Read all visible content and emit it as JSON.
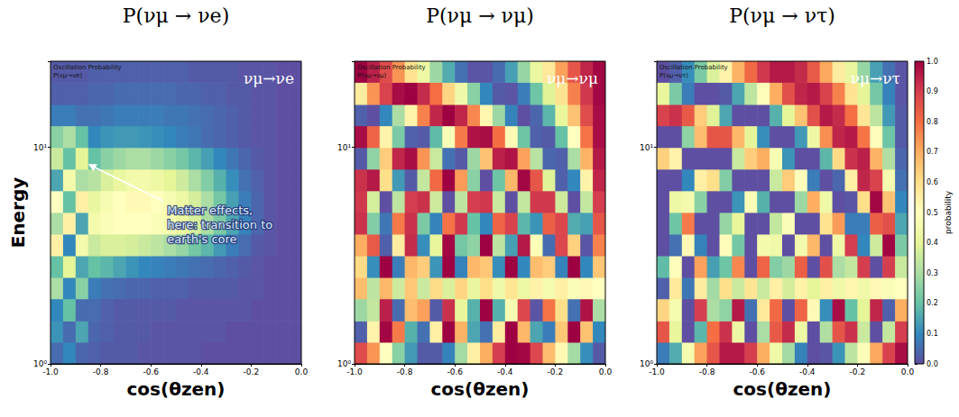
{
  "chart_data": [
    {
      "type": "heatmap",
      "title": "P(νμ → νe)",
      "xlabel": "cos(θzen)",
      "ylabel": "Energy",
      "annotations": [
        "Oscillation Probability",
        "P(νμ→νe)",
        "νμ→νe"
      ],
      "note": "Matter effects, here: transition to earth's core",
      "log": "y",
      "grid": false,
      "xlim": [
        -1,
        0
      ],
      "xticks": [
        {
          "value": -1,
          "label": "-1.0"
        },
        {
          "value": -0.8,
          "label": "-0.8"
        },
        {
          "value": -0.6,
          "label": "-0.6"
        },
        {
          "value": -0.4,
          "label": "-0.4"
        },
        {
          "value": -0.2,
          "label": "-0.2"
        },
        {
          "value": 0,
          "label": "0.0"
        }
      ],
      "ylim": [
        1,
        25
      ],
      "yticks": [
        {
          "value": 1,
          "label": "10⁰"
        },
        {
          "value": 10,
          "label": "10¹"
        }
      ],
      "x_edges": [
        -1,
        -0.95,
        -0.9,
        -0.85,
        -0.8,
        -0.75,
        -0.7,
        -0.65,
        -0.6,
        -0.55,
        -0.5,
        -0.45,
        -0.4,
        -0.35,
        -0.3,
        -0.25,
        -0.2,
        -0.15,
        -0.1,
        -0.05,
        0
      ],
      "y_edges": [
        1,
        1.26,
        1.58,
        2,
        2.51,
        3.16,
        3.98,
        5.01,
        6.31,
        7.94,
        10,
        12.6,
        15.8,
        20,
        25
      ],
      "cells": [
        [
          0.05,
          0.1,
          0.04,
          0.03,
          0.02,
          0.02,
          0.02,
          0.01,
          0.01,
          0.01,
          0.01,
          0.01,
          0,
          0,
          0,
          0,
          0,
          0,
          0,
          0
        ],
        [
          0.12,
          0.05,
          0.15,
          0.04,
          0.03,
          0.02,
          0.02,
          0.02,
          0.01,
          0.01,
          0.01,
          0.01,
          0.01,
          0.01,
          0,
          0,
          0,
          0,
          0,
          0
        ],
        [
          0.1,
          0.2,
          0.05,
          0.05,
          0.03,
          0.02,
          0.02,
          0.02,
          0.02,
          0.02,
          0.01,
          0.01,
          0.01,
          0.01,
          0.01,
          0.01,
          0,
          0,
          0,
          0
        ],
        [
          0.3,
          0.1,
          0.25,
          0.08,
          0.06,
          0.05,
          0.04,
          0.04,
          0.03,
          0.03,
          0.03,
          0.02,
          0.02,
          0.02,
          0.02,
          0.01,
          0.01,
          0,
          0,
          0
        ],
        [
          0.2,
          0.4,
          0.15,
          0.2,
          0.18,
          0.15,
          0.12,
          0.1,
          0.09,
          0.08,
          0.07,
          0.06,
          0.05,
          0.04,
          0.03,
          0.02,
          0.01,
          0,
          0,
          0
        ],
        [
          0.55,
          0.1,
          0.45,
          0.35,
          0.38,
          0.38,
          0.37,
          0.35,
          0.33,
          0.3,
          0.27,
          0.22,
          0.18,
          0.13,
          0.08,
          0.05,
          0.02,
          0.01,
          0,
          0
        ],
        [
          0.3,
          0.55,
          0.15,
          0.45,
          0.48,
          0.5,
          0.5,
          0.5,
          0.48,
          0.46,
          0.42,
          0.37,
          0.3,
          0.23,
          0.15,
          0.09,
          0.04,
          0.01,
          0,
          0
        ],
        [
          0.5,
          0.2,
          0.55,
          0.42,
          0.47,
          0.5,
          0.52,
          0.52,
          0.5,
          0.47,
          0.43,
          0.37,
          0.3,
          0.22,
          0.14,
          0.08,
          0.04,
          0.01,
          0,
          0
        ],
        [
          0.15,
          0.45,
          0.3,
          0.32,
          0.38,
          0.42,
          0.45,
          0.45,
          0.43,
          0.4,
          0.36,
          0.3,
          0.24,
          0.17,
          0.11,
          0.06,
          0.03,
          0.01,
          0,
          0
        ],
        [
          0.35,
          0.2,
          0.4,
          0.2,
          0.25,
          0.28,
          0.3,
          0.3,
          0.28,
          0.25,
          0.22,
          0.18,
          0.14,
          0.1,
          0.07,
          0.04,
          0.02,
          0.01,
          0,
          0
        ],
        [
          0.25,
          0.3,
          0.2,
          0.1,
          0.12,
          0.13,
          0.13,
          0.12,
          0.11,
          0.1,
          0.08,
          0.07,
          0.05,
          0.04,
          0.03,
          0.02,
          0.01,
          0.01,
          0,
          0
        ],
        [
          0.08,
          0.08,
          0.06,
          0.06,
          0.07,
          0.08,
          0.08,
          0.08,
          0.08,
          0.07,
          0.07,
          0.06,
          0.05,
          0.04,
          0.03,
          0.02,
          0.01,
          0.01,
          0,
          0
        ],
        [
          0.03,
          0.03,
          0.03,
          0.04,
          0.04,
          0.05,
          0.05,
          0.05,
          0.05,
          0.05,
          0.04,
          0.04,
          0.03,
          0.03,
          0.02,
          0.02,
          0.01,
          0.01,
          0,
          0
        ],
        [
          0.02,
          0.02,
          0.02,
          0.03,
          0.03,
          0.03,
          0.03,
          0.03,
          0.03,
          0.03,
          0.03,
          0.02,
          0.02,
          0.02,
          0.02,
          0.01,
          0.01,
          0.01,
          0,
          0
        ]
      ]
    },
    {
      "type": "heatmap",
      "title": "P(νμ → νμ)",
      "xlabel": "cos(θzen)",
      "annotations": [
        "Oscillation Probability",
        "P(νμ→νμ)",
        "νμ→νμ"
      ],
      "log": "y",
      "grid": false,
      "xlim": [
        -1,
        0
      ],
      "xticks": [
        {
          "value": -1,
          "label": "-1.0"
        },
        {
          "value": -0.8,
          "label": "-0.8"
        },
        {
          "value": -0.6,
          "label": "-0.6"
        },
        {
          "value": -0.4,
          "label": "-0.4"
        },
        {
          "value": -0.2,
          "label": "-0.2"
        },
        {
          "value": 0,
          "label": "0.0"
        }
      ],
      "ylim": [
        1,
        25
      ],
      "yticks": [
        {
          "value": 1,
          "label": "10⁰"
        },
        {
          "value": 10,
          "label": "10¹"
        }
      ],
      "x_edges": [
        -1,
        -0.95,
        -0.9,
        -0.85,
        -0.8,
        -0.75,
        -0.7,
        -0.65,
        -0.6,
        -0.55,
        -0.5,
        -0.45,
        -0.4,
        -0.35,
        -0.3,
        -0.25,
        -0.2,
        -0.15,
        -0.1,
        -0.05,
        0
      ],
      "y_edges": [
        1,
        1.26,
        1.58,
        2,
        2.51,
        3.16,
        3.98,
        5.01,
        6.31,
        7.94,
        10,
        12.6,
        15.8,
        20,
        25
      ],
      "cells": [
        [
          0.87,
          0.74,
          0.5,
          0.25,
          0.13,
          0.02,
          0.02,
          0.09,
          0.29,
          0.55,
          0.7,
          0.9,
          1,
          0.99,
          0.88,
          0.67,
          0.52,
          0.29,
          0.11,
          0.02
        ],
        [
          0.03,
          0.54,
          0.99,
          0.78,
          0.17,
          0.06,
          0.55,
          1,
          0.69,
          0.15,
          0.06,
          0.56,
          1,
          0.68,
          0.15,
          0.08,
          0.65,
          1,
          0.66,
          0.1
        ],
        [
          0.28,
          0.34,
          0.95,
          0.05,
          0.67,
          0.72,
          0.02,
          0.92,
          0.41,
          0.17,
          1,
          0.17,
          0.47,
          0.88,
          0.01,
          0.79,
          0.6,
          0.06,
          0.97,
          0.3
        ],
        [
          0.67,
          0.33,
          0.68,
          0.36,
          0.65,
          0.35,
          0.61,
          0.38,
          0.62,
          0.42,
          0.6,
          0.44,
          0.58,
          0.43,
          0.54,
          0.46,
          0.55,
          0.48,
          0.52,
          0.5
        ],
        [
          0.61,
          0.11,
          1,
          0.08,
          0.68,
          0.64,
          0.12,
          1,
          0.09,
          0.68,
          0.65,
          0.11,
          1,
          0.1,
          0.67,
          0.64,
          0.09,
          1,
          0.1,
          0.65
        ],
        [
          0.7,
          0.84,
          0.03,
          0.56,
          0.93,
          0.11,
          0.41,
          0.99,
          0.22,
          0.26,
          1,
          0.33,
          0.14,
          0.96,
          0.48,
          0.05,
          0.88,
          0.63,
          0.01,
          0.77
        ],
        [
          0.92,
          0.24,
          0.07,
          0.78,
          0.92,
          0.23,
          0.09,
          0.79,
          0.91,
          0.2,
          0.1,
          0.82,
          0.89,
          0.18,
          0.12,
          0.83,
          0.88,
          0.16,
          0.14,
          0.85
        ],
        [
          0.91,
          0.37,
          0,
          0.33,
          0.9,
          0.92,
          0.36,
          0,
          0.33,
          0.9,
          0.91,
          0.35,
          0,
          0.34,
          0.91,
          0.91,
          0.36,
          0,
          0.34,
          0.9
        ],
        [
          0.92,
          0.96,
          0.6,
          0.13,
          0.02,
          0.34,
          0.81,
          1,
          0.73,
          0.25,
          0,
          0.21,
          0.68,
          0.99,
          0.85,
          0.39,
          0.03,
          0.1,
          0.54,
          0.94
        ],
        [
          0.02,
          0.26,
          0.64,
          0.94,
          0.98,
          0.74,
          0.35,
          0.06,
          0.02,
          0.28,
          0.66,
          0.95,
          0.97,
          0.72,
          0.32,
          0.04,
          0.03,
          0.3,
          0.69,
          0.96
        ],
        [
          0.98,
          0.82,
          0.54,
          0.23,
          0.03,
          0.02,
          0.19,
          0.48,
          0.78,
          0.97,
          0.98,
          0.8,
          0.52,
          0.21,
          0.03,
          0.02,
          0.2,
          0.5,
          0.79,
          0.98
        ],
        [
          0.03,
          0,
          0.1,
          0.3,
          0.54,
          0.77,
          0.94,
          1,
          0.94,
          0.76,
          0.53,
          0.28,
          0.09,
          0,
          0.04,
          0.18,
          0.41,
          0.66,
          0.87,
          0.98
        ],
        [
          0.56,
          0.74,
          0.89,
          0.98,
          1,
          0.93,
          0.8,
          0.62,
          0.44,
          0.25,
          0.1,
          0.02,
          0.01,
          0.08,
          0.21,
          0.39,
          0.59,
          0.77,
          0.91,
          0.99
        ],
        [
          1,
          0.95,
          0.87,
          0.74,
          0.59,
          0.43,
          0.28,
          0.16,
          0.06,
          0.01,
          0.01,
          0.05,
          0.14,
          0.27,
          0.42,
          0.57,
          0.72,
          0.85,
          0.94,
          0.99
        ]
      ]
    },
    {
      "type": "heatmap",
      "title": "P(νμ → ντ)",
      "xlabel": "cos(θzen)",
      "annotations": [
        "Oscillation Probability",
        "P(νμ→ντ)",
        "νμ→ντ"
      ],
      "log": "y",
      "grid": false,
      "xlim": [
        -1,
        0
      ],
      "xticks": [
        {
          "value": -1,
          "label": "-1.0"
        },
        {
          "value": -0.8,
          "label": "-0.8"
        },
        {
          "value": -0.6,
          "label": "-0.6"
        },
        {
          "value": -0.4,
          "label": "-0.4"
        },
        {
          "value": -0.2,
          "label": "-0.2"
        },
        {
          "value": 0,
          "label": "0.0"
        }
      ],
      "ylim": [
        1,
        25
      ],
      "yticks": [
        {
          "value": 1,
          "label": "10⁰"
        },
        {
          "value": 10,
          "label": "10¹"
        }
      ],
      "x_edges": [
        -1,
        -0.95,
        -0.9,
        -0.85,
        -0.8,
        -0.75,
        -0.7,
        -0.65,
        -0.6,
        -0.55,
        -0.5,
        -0.45,
        -0.4,
        -0.35,
        -0.3,
        -0.25,
        -0.2,
        -0.15,
        -0.1,
        -0.05,
        0
      ],
      "y_edges": [
        1,
        1.26,
        1.58,
        2,
        2.51,
        3.16,
        3.98,
        5.01,
        6.31,
        7.94,
        10,
        12.6,
        15.8,
        20,
        25
      ],
      "cells": [
        [
          0.08,
          0.16,
          0.46,
          0.72,
          0.85,
          0.96,
          0.96,
          0.9,
          0.7,
          0.44,
          0.29,
          0.09,
          0,
          0.01,
          0.12,
          0.33,
          0.48,
          0.71,
          0.89,
          0.98
        ],
        [
          0.85,
          0.41,
          0,
          0.18,
          0.8,
          0.92,
          0.43,
          0,
          0.3,
          0.84,
          0.93,
          0.43,
          0,
          0.31,
          0.85,
          0.92,
          0.35,
          0,
          0.34,
          0.9
        ],
        [
          0.62,
          0.46,
          0,
          0.9,
          0.3,
          0.26,
          0.96,
          0.06,
          0.57,
          0.81,
          0,
          0.82,
          0.52,
          0.11,
          0.98,
          0.2,
          0.4,
          0.94,
          0.03,
          0.7
        ],
        [
          0.03,
          0.57,
          0.07,
          0.56,
          0.29,
          0.6,
          0.35,
          0.58,
          0.35,
          0.55,
          0.37,
          0.54,
          0.4,
          0.55,
          0.44,
          0.53,
          0.44,
          0.52,
          0.48,
          0.5
        ],
        [
          0.19,
          0.49,
          0,
          0.72,
          0.14,
          0.21,
          0.76,
          0,
          0.82,
          0.24,
          0.28,
          0.83,
          0,
          0.86,
          0.3,
          0.34,
          0.9,
          0,
          0.9,
          0.35
        ],
        [
          0,
          0.06,
          0.52,
          0.09,
          0,
          0.51,
          0.22,
          0,
          0.45,
          0.44,
          0,
          0.45,
          0.68,
          0,
          0.44,
          0.9,
          0.1,
          0.36,
          0.99,
          0.23
        ],
        [
          0,
          0.21,
          0.78,
          0,
          0,
          0.27,
          0.41,
          0,
          0,
          0.34,
          0.48,
          0,
          0,
          0.59,
          0.73,
          0.08,
          0.08,
          0.83,
          0.86,
          0.15
        ],
        [
          0,
          0.43,
          0.45,
          0.25,
          0,
          0,
          0.12,
          0.48,
          0.17,
          0,
          0,
          0.28,
          0.7,
          0.44,
          0,
          0.01,
          0.6,
          0.99,
          0.66,
          0.1
        ],
        [
          0,
          0,
          0.1,
          0.55,
          0.6,
          0.24,
          0,
          0,
          0,
          0.35,
          0.64,
          0.49,
          0.08,
          0,
          0.04,
          0.55,
          0.94,
          0.89,
          0.46,
          0.06
        ],
        [
          0.63,
          0.54,
          0,
          0,
          0,
          0,
          0.35,
          0.64,
          0.7,
          0.47,
          0.12,
          0,
          0,
          0.18,
          0.61,
          0.92,
          0.95,
          0.69,
          0.31,
          0.04
        ],
        [
          0,
          0,
          0.26,
          0.67,
          0.85,
          0.85,
          0.68,
          0.4,
          0.11,
          0,
          0,
          0.13,
          0.43,
          0.75,
          0.94,
          0.96,
          0.79,
          0.49,
          0.21,
          0.02
        ],
        [
          0.89,
          0.92,
          0.84,
          0.64,
          0.39,
          0.15,
          0,
          0,
          0,
          0.17,
          0.4,
          0.66,
          0.86,
          0.96,
          0.93,
          0.8,
          0.58,
          0.33,
          0.13,
          0.02
        ],
        [
          0.41,
          0.23,
          0.08,
          0,
          0,
          0.02,
          0.15,
          0.33,
          0.51,
          0.7,
          0.86,
          0.94,
          0.96,
          0.89,
          0.77,
          0.59,
          0.4,
          0.22,
          0.09,
          0.01
        ],
        [
          0,
          0.03,
          0.11,
          0.23,
          0.38,
          0.54,
          0.69,
          0.81,
          0.91,
          0.96,
          0.96,
          0.93,
          0.84,
          0.71,
          0.56,
          0.42,
          0.27,
          0.14,
          0.06,
          0.01
        ]
      ],
      "colorbar": {
        "range": [
          0,
          1
        ],
        "label": "probability",
        "ticks": [
          {
            "value": 0,
            "label": "0.0"
          },
          0.1,
          0.2,
          0.3,
          0.4,
          0.5,
          0.6,
          0.7,
          0.8,
          0.9,
          {
            "value": 1,
            "label": "1.0"
          }
        ]
      }
    }
  ]
}
